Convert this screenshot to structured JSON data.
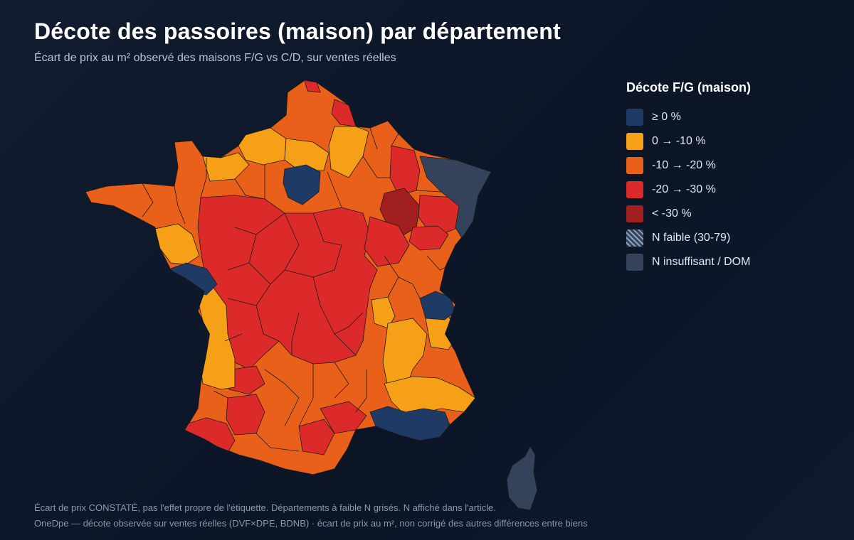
{
  "header": {
    "title": "Décote des passoires (maison) par département",
    "subtitle": "Écart de prix au m² observé des maisons F/G vs C/D, sur ventes réelles"
  },
  "legend": {
    "title": "Décote F/G (maison)",
    "items": [
      {
        "label": "≥ 0 %",
        "color": "#1f3a64"
      },
      {
        "label": "0 → -10 %",
        "color": "#f5a017"
      },
      {
        "label": "-10 → -20 %",
        "color": "#e8601a"
      },
      {
        "label": "-20 → -30 %",
        "color": "#dc2a2a"
      },
      {
        "label": "< -30 %",
        "color": "#a11f1f"
      },
      {
        "label": "N faible (30-79)",
        "color": "#33445e",
        "pattern": "hatch"
      },
      {
        "label": "N insuffisant / DOM",
        "color": "#34425b"
      }
    ]
  },
  "footer": {
    "line1": "Écart de prix CONSTATÉ, pas l'effet propre de l'étiquette. Départements à faible N grisés. N affiché dans l'article.",
    "line2": "OneDpe — décote observée sur ventes réelles (DVF×DPE, BDNB) · écart de prix au m², non corrigé des autres différences entre biens"
  }
}
